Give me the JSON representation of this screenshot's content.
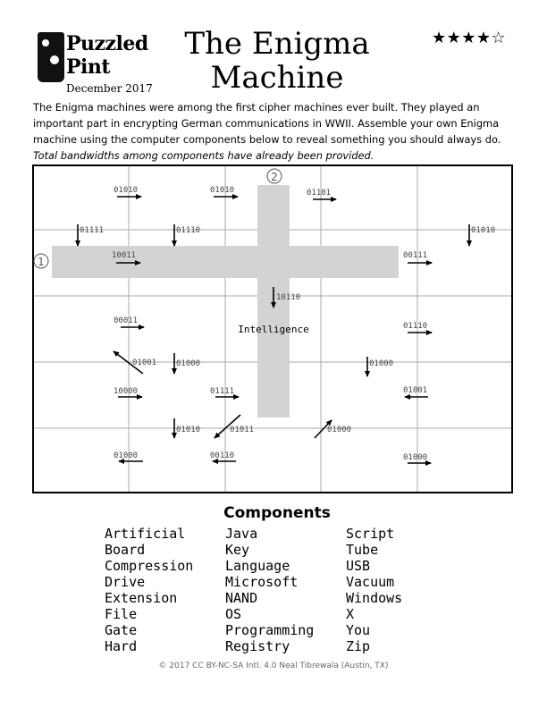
{
  "logo": {
    "line1": "Puzzled",
    "line2": "Pint",
    "date": "December 2017"
  },
  "title": {
    "line1": "The Enigma",
    "line2": "Machine"
  },
  "difficulty": {
    "stars": "★★★★☆",
    "filled": 4,
    "max": 5
  },
  "intro": {
    "text": "The Enigma machines were among the first cipher machines ever built.  They played an important part in encrypting German communications in WWII.  Assemble your own Enigma machine using the computer components below to reveal something you should always do.",
    "italic": "Total bandwidths among components have already been provided."
  },
  "grid": {
    "marker1": "1",
    "marker2": "2",
    "center_word": "Intelligence",
    "codes": [
      "01010",
      "01010",
      "01101",
      "01111",
      "01110",
      "01010",
      "10011",
      "00111",
      "10110",
      "00011",
      "01110",
      "01001",
      "01000",
      "01000",
      "10000",
      "01111",
      "01001",
      "01010",
      "01011",
      "01000",
      "01000",
      "00110",
      "01000"
    ]
  },
  "components": {
    "title": "Components",
    "col1": [
      "Artificial",
      "Board",
      "Compression",
      "Drive",
      "Extension",
      "File",
      "Gate",
      "Hard"
    ],
    "col2": [
      "Java",
      "Key",
      "Language",
      "Microsoft",
      "NAND",
      "OS",
      "Programming",
      "Registry"
    ],
    "col3": [
      "Script",
      "Tube",
      "USB",
      "Vacuum",
      "Windows",
      "X",
      "You",
      "Zip"
    ]
  },
  "footer": "© 2017 CC BY-NC-SA Intl. 4.0 Neal Tibrewala (Austin, TX)"
}
